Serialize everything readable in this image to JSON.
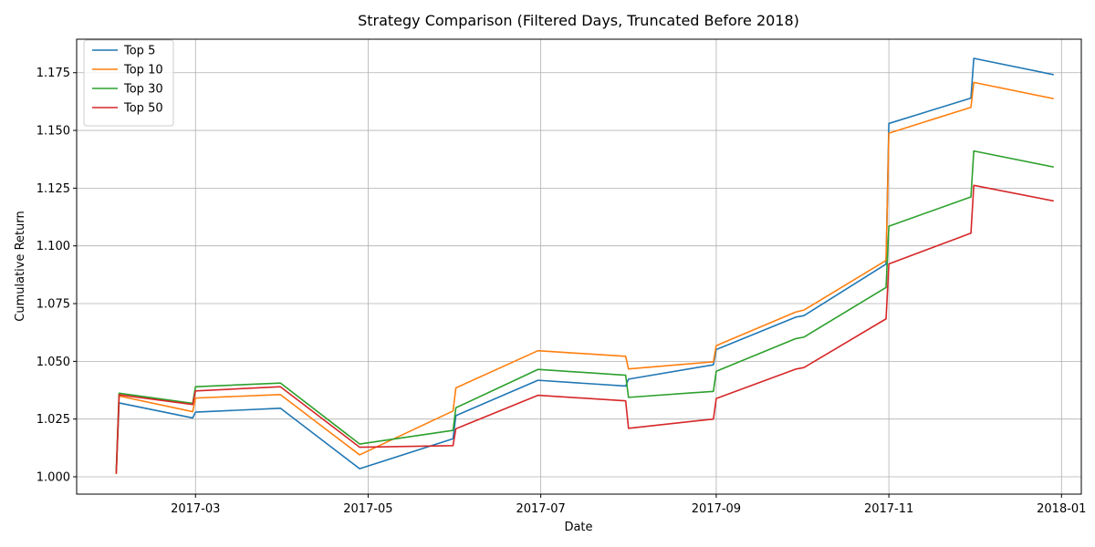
{
  "chart_data": {
    "type": "line",
    "title": "Strategy Comparison (Filtered Days, Truncated Before 2018)",
    "xlabel": "Date",
    "ylabel": "Cumulative Return",
    "x_type": "date",
    "xlim": [
      "2017-01-18",
      "2018-01-08"
    ],
    "ylim": [
      0.9925,
      1.1895
    ],
    "x_ticks": [
      {
        "value": "2017-03-01",
        "label": "2017-03"
      },
      {
        "value": "2017-05-01",
        "label": "2017-05"
      },
      {
        "value": "2017-07-01",
        "label": "2017-07"
      },
      {
        "value": "2017-09-01",
        "label": "2017-09"
      },
      {
        "value": "2017-11-01",
        "label": "2017-11"
      },
      {
        "value": "2018-01-01",
        "label": "2018-01"
      }
    ],
    "y_ticks": [
      {
        "value": 1.0,
        "label": "1.000"
      },
      {
        "value": 1.025,
        "label": "1.025"
      },
      {
        "value": 1.05,
        "label": "1.050"
      },
      {
        "value": 1.075,
        "label": "1.075"
      },
      {
        "value": 1.1,
        "label": "1.100"
      },
      {
        "value": 1.125,
        "label": "1.125"
      },
      {
        "value": 1.15,
        "label": "1.150"
      },
      {
        "value": 1.175,
        "label": "1.175"
      }
    ],
    "grid": true,
    "legend_position": "top-left",
    "series": [
      {
        "name": "Top 5",
        "color": "#1f77b4",
        "points": [
          [
            "2017-02-01",
            1.002
          ],
          [
            "2017-02-02",
            1.032
          ],
          [
            "2017-02-28",
            1.0255
          ],
          [
            "2017-03-01",
            1.028
          ],
          [
            "2017-03-31",
            1.0297
          ],
          [
            "2017-04-28",
            1.0035
          ],
          [
            "2017-05-31",
            1.0165
          ],
          [
            "2017-06-01",
            1.0265
          ],
          [
            "2017-06-30",
            1.0418
          ],
          [
            "2017-07-31",
            1.0393
          ],
          [
            "2017-08-01",
            1.0423
          ],
          [
            "2017-08-31",
            1.0485
          ],
          [
            "2017-09-01",
            1.0551
          ],
          [
            "2017-09-29",
            1.0691
          ],
          [
            "2017-10-02",
            1.0698
          ],
          [
            "2017-10-31",
            1.0921
          ],
          [
            "2017-11-01",
            1.153
          ],
          [
            "2017-11-30",
            1.164
          ],
          [
            "2017-12-01",
            1.1812
          ],
          [
            "2017-12-29",
            1.1742
          ]
        ]
      },
      {
        "name": "Top 10",
        "color": "#ff7f0e",
        "points": [
          [
            "2017-02-01",
            1.0015
          ],
          [
            "2017-02-02",
            1.035
          ],
          [
            "2017-02-28",
            1.0282
          ],
          [
            "2017-03-01",
            1.0341
          ],
          [
            "2017-03-31",
            1.0356
          ],
          [
            "2017-04-28",
            1.0095
          ],
          [
            "2017-05-31",
            1.0285
          ],
          [
            "2017-06-01",
            1.0385
          ],
          [
            "2017-06-30",
            1.0546
          ],
          [
            "2017-07-31",
            1.0522
          ],
          [
            "2017-08-01",
            1.0467
          ],
          [
            "2017-08-31",
            1.0498
          ],
          [
            "2017-09-01",
            1.0568
          ],
          [
            "2017-09-29",
            1.0713
          ],
          [
            "2017-10-02",
            1.0722
          ],
          [
            "2017-10-31",
            1.0937
          ],
          [
            "2017-11-01",
            1.1488
          ],
          [
            "2017-11-30",
            1.16
          ],
          [
            "2017-12-01",
            1.1708
          ],
          [
            "2017-12-29",
            1.1638
          ]
        ]
      },
      {
        "name": "Top 30",
        "color": "#2ca02c",
        "points": [
          [
            "2017-02-01",
            1.003
          ],
          [
            "2017-02-02",
            1.0362
          ],
          [
            "2017-02-28",
            1.0318
          ],
          [
            "2017-03-01",
            1.039
          ],
          [
            "2017-03-31",
            1.0406
          ],
          [
            "2017-04-28",
            1.0142
          ],
          [
            "2017-05-31",
            1.0201
          ],
          [
            "2017-06-01",
            1.0299
          ],
          [
            "2017-06-30",
            1.0465
          ],
          [
            "2017-07-31",
            1.044
          ],
          [
            "2017-08-01",
            1.0344
          ],
          [
            "2017-08-31",
            1.037
          ],
          [
            "2017-09-01",
            1.0457
          ],
          [
            "2017-09-29",
            1.0598
          ],
          [
            "2017-10-02",
            1.0605
          ],
          [
            "2017-10-31",
            1.082
          ],
          [
            "2017-11-01",
            1.1085
          ],
          [
            "2017-11-30",
            1.1212
          ],
          [
            "2017-12-01",
            1.1411
          ],
          [
            "2017-12-29",
            1.1342
          ]
        ]
      },
      {
        "name": "Top 50",
        "color": "#d62728",
        "points": [
          [
            "2017-02-01",
            1.0017
          ],
          [
            "2017-02-02",
            1.0355
          ],
          [
            "2017-02-28",
            1.0313
          ],
          [
            "2017-03-01",
            1.0372
          ],
          [
            "2017-03-31",
            1.039
          ],
          [
            "2017-04-28",
            1.0128
          ],
          [
            "2017-05-31",
            1.0135
          ],
          [
            "2017-06-01",
            1.0208
          ],
          [
            "2017-06-30",
            1.0353
          ],
          [
            "2017-07-31",
            1.0329
          ],
          [
            "2017-08-01",
            1.021
          ],
          [
            "2017-08-31",
            1.025
          ],
          [
            "2017-09-01",
            1.0339
          ],
          [
            "2017-09-29",
            1.0466
          ],
          [
            "2017-10-02",
            1.0473
          ],
          [
            "2017-10-31",
            1.0684
          ],
          [
            "2017-11-01",
            1.0922
          ],
          [
            "2017-11-30",
            1.1055
          ],
          [
            "2017-12-01",
            1.1262
          ],
          [
            "2017-12-29",
            1.1195
          ]
        ]
      }
    ]
  }
}
